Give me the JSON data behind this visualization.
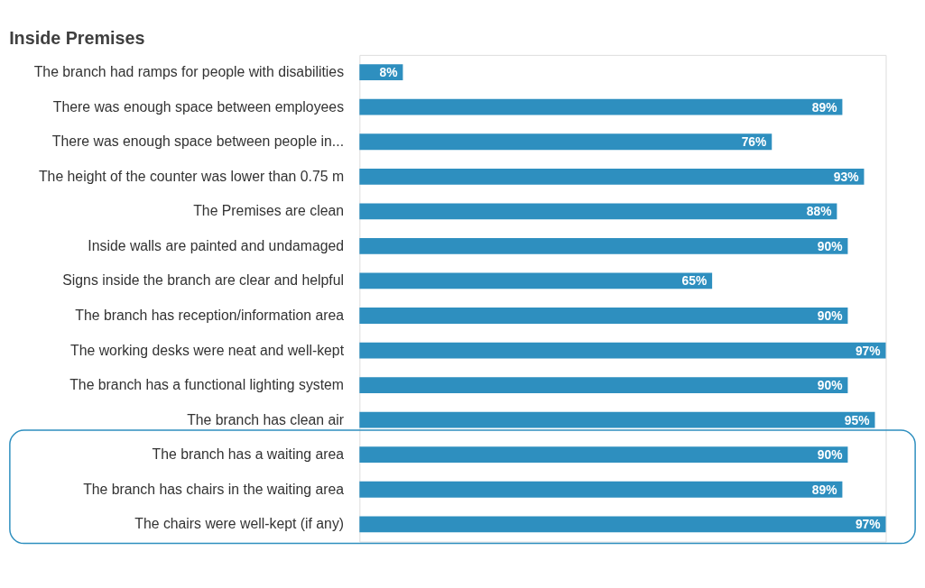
{
  "chart_data": {
    "type": "bar",
    "orientation": "horizontal",
    "title": "Inside Premises",
    "categories": [
      "The branch had ramps for people with disabilities",
      "There was enough space between employees",
      "There was enough space between people in...",
      "The height of the counter was lower than 0.75 m",
      "The Premises are clean",
      "Inside walls are painted and undamaged",
      "Signs inside the branch are clear and helpful",
      "The branch has reception/information area",
      "The working desks were neat and well-kept",
      "The branch has a functional lighting system ",
      "The branch has clean air",
      "The branch has a waiting area",
      "The branch has chairs in the waiting area",
      "The chairs were well-kept (if any)"
    ],
    "values": [
      8,
      89,
      76,
      93,
      88,
      90,
      65,
      90,
      97,
      90,
      95,
      90,
      89,
      97
    ],
    "value_labels": [
      "8%",
      "89%",
      "76%",
      "93%",
      "88%",
      "90%",
      "65%",
      "90%",
      "97%",
      "90%",
      "95%",
      "90%",
      "89%",
      "97%"
    ],
    "color": "#2e8fbf",
    "tick_labels": "y"
  }
}
